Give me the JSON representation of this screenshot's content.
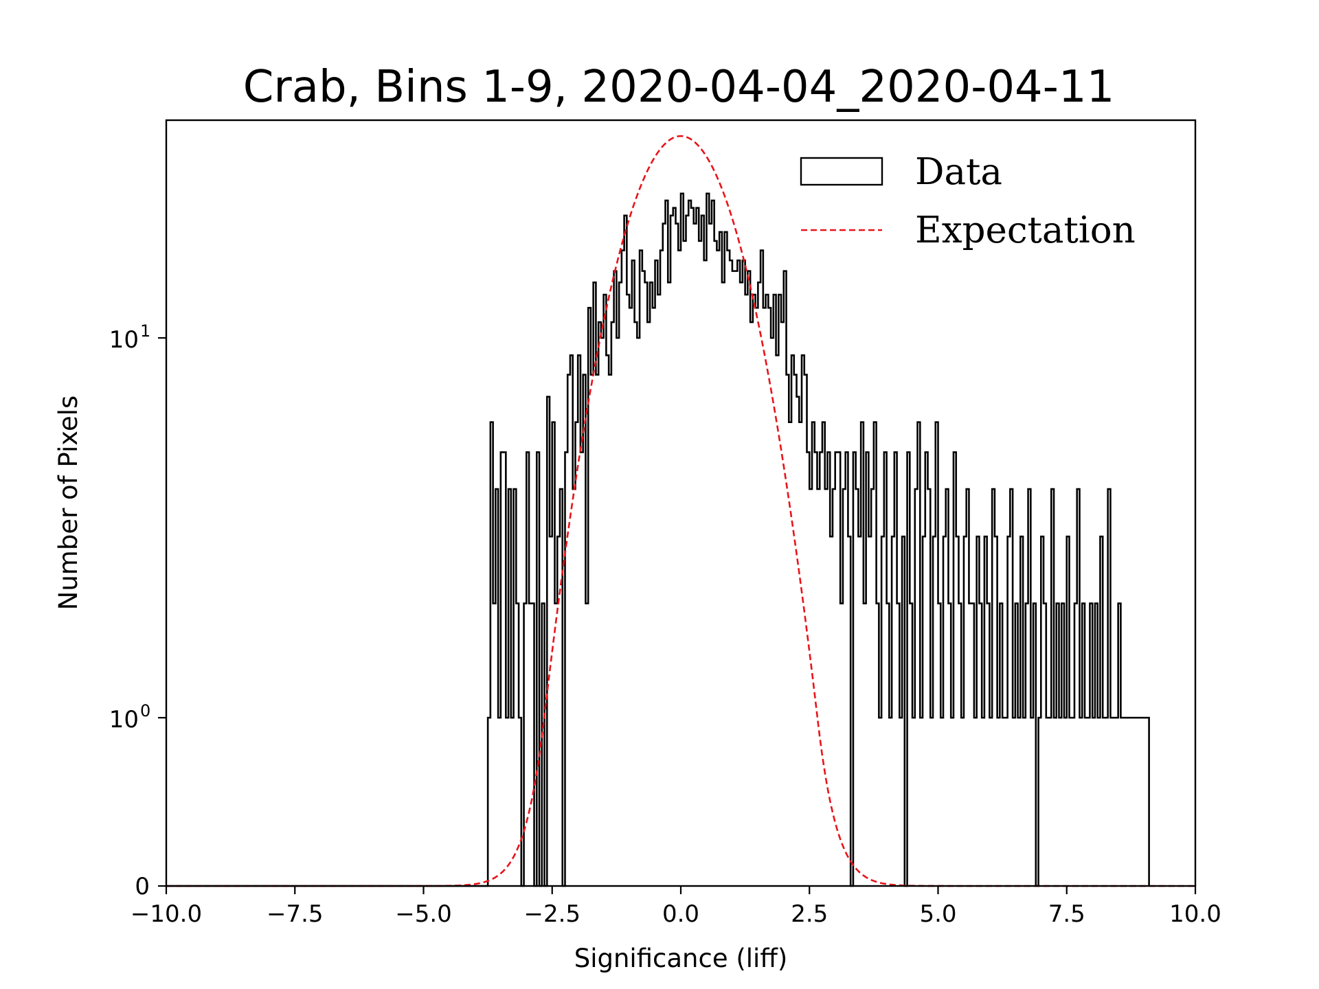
{
  "chart_data": {
    "type": "histogram",
    "title": "Crab, Bins 1-9, 2020-04-04_2020-04-11",
    "xlabel": "Significance (liff)",
    "ylabel": "Number of Pixels",
    "xlim": [
      -10,
      10
    ],
    "yscale": "symlog",
    "ylim_top": 35,
    "xticks": [
      -10,
      -7.5,
      -5,
      -2.5,
      0,
      2.5,
      5,
      7.5,
      10
    ],
    "xtick_labels": [
      "−10.0",
      "−7.5",
      "−5.0",
      "−2.5",
      "0.0",
      "2.5",
      "5.0",
      "7.5",
      "10.0"
    ],
    "yticks": [
      {
        "value": 0,
        "base": "0",
        "exp": ""
      },
      {
        "value": 1,
        "base": "10",
        "exp": "0"
      },
      {
        "value": 10,
        "base": "10",
        "exp": "1"
      }
    ],
    "legend": {
      "position": "top-right",
      "entries": [
        {
          "label": "Data",
          "style": "step",
          "color": "#000000"
        },
        {
          "label": "Expectation",
          "style": "dashed",
          "color": "#e8141a"
        }
      ]
    },
    "data_series": {
      "name": "Data",
      "bin_start": -10,
      "bin_width": 0.05,
      "counts": [
        0,
        0,
        0,
        0,
        0,
        0,
        0,
        0,
        0,
        0,
        0,
        0,
        0,
        0,
        0,
        0,
        0,
        0,
        0,
        0,
        0,
        0,
        0,
        0,
        0,
        0,
        0,
        0,
        0,
        0,
        0,
        0,
        0,
        0,
        0,
        0,
        0,
        0,
        0,
        0,
        0,
        0,
        0,
        0,
        0,
        0,
        0,
        0,
        0,
        0,
        0,
        0,
        0,
        0,
        0,
        0,
        0,
        0,
        0,
        0,
        0,
        0,
        0,
        0,
        0,
        0,
        0,
        0,
        0,
        0,
        0,
        0,
        0,
        0,
        0,
        0,
        0,
        0,
        0,
        0,
        0,
        0,
        0,
        0,
        0,
        0,
        0,
        0,
        0,
        0,
        0,
        0,
        0,
        0,
        0,
        0,
        0,
        0,
        0,
        0,
        0,
        0,
        0,
        0,
        0,
        0,
        0,
        0,
        0,
        0,
        0,
        0,
        0,
        0,
        0,
        0,
        0,
        0,
        0,
        0,
        0,
        0,
        0,
        0,
        0,
        1,
        6,
        2,
        4,
        1,
        5,
        5,
        1,
        4,
        1,
        4,
        2,
        1,
        0,
        2,
        5,
        2,
        2,
        0,
        5,
        0,
        2,
        0,
        7,
        3,
        6,
        2,
        3,
        4,
        0,
        5,
        8,
        9,
        4,
        6,
        9,
        5,
        8,
        2,
        12,
        8,
        14,
        8,
        11,
        10,
        13,
        9,
        8,
        11,
        15,
        10,
        14,
        17,
        21,
        13,
        12,
        16,
        11,
        10,
        17,
        15,
        14,
        11,
        14,
        12,
        16,
        13,
        17,
        20,
        23,
        14,
        21,
        22,
        20,
        17,
        24,
        18,
        21,
        23,
        22,
        20,
        22,
        18,
        21,
        16,
        24,
        20,
        23,
        18,
        17,
        19,
        14,
        19,
        17,
        16,
        15,
        15,
        16,
        14,
        16,
        13,
        15,
        11,
        13,
        12,
        14,
        17,
        12,
        13,
        12,
        10,
        13,
        9,
        13,
        11,
        15,
        8,
        6,
        9,
        8,
        7,
        6,
        9,
        8,
        5,
        4,
        6,
        5,
        4,
        5,
        6,
        4,
        5,
        3,
        4,
        5,
        5,
        2,
        4,
        5,
        3,
        0,
        5,
        4,
        3,
        6,
        2,
        5,
        3,
        4,
        6,
        2,
        1,
        3,
        5,
        2,
        1,
        3,
        5,
        2,
        1,
        3,
        0,
        5,
        2,
        1,
        4,
        6,
        1,
        3,
        5,
        4,
        1,
        3,
        6,
        2,
        1,
        3,
        4,
        2,
        1,
        5,
        3,
        2,
        1,
        3,
        4,
        2,
        2,
        1,
        3,
        2,
        1,
        3,
        2,
        1,
        4,
        3,
        1,
        2,
        1,
        1,
        3,
        4,
        1,
        2,
        1,
        3,
        1,
        2,
        4,
        1,
        2,
        0,
        1,
        3,
        2,
        1,
        1,
        4,
        1,
        2,
        1,
        2,
        1,
        3,
        1,
        1,
        2,
        4,
        1,
        2,
        1,
        1,
        2,
        1,
        2,
        1,
        3,
        1,
        1,
        4,
        1,
        1,
        1,
        2,
        1,
        1,
        1,
        1,
        1,
        1,
        1,
        1,
        1,
        1,
        1
      ]
    },
    "expectation_series": {
      "name": "Expectation",
      "distribution": "gaussian",
      "mean": 0.0,
      "sigma": 1.0,
      "peak": 34.0
    }
  }
}
